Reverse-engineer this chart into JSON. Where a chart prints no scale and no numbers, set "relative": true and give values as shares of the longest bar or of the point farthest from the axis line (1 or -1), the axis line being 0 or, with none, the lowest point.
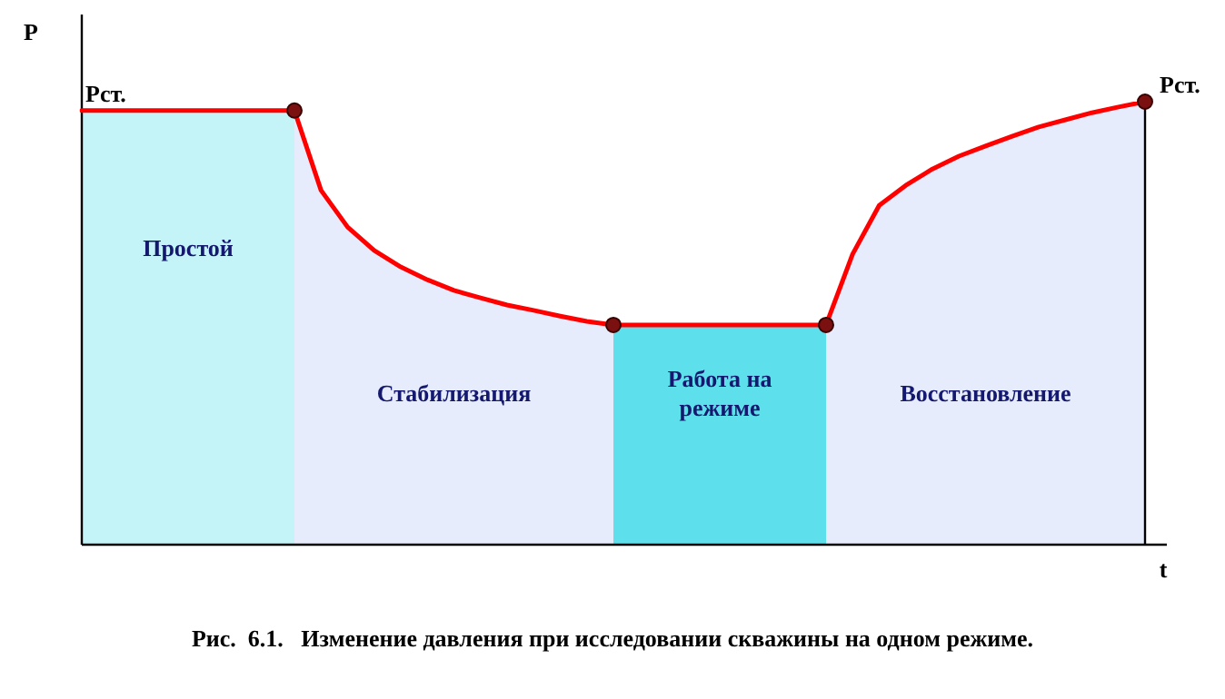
{
  "chart_data": {
    "type": "line",
    "relative": true,
    "xlabel": "t",
    "ylabel": "P",
    "tick_labels": false,
    "legend": false,
    "marker": "none",
    "categories": [
      null,
      null,
      null,
      null,
      null,
      null,
      null,
      null,
      null,
      null,
      null,
      null,
      null,
      null,
      null,
      null,
      null,
      null,
      null,
      null,
      null,
      null,
      null,
      null,
      null,
      null,
      null,
      null,
      null,
      null,
      null,
      null,
      null,
      null,
      null,
      null,
      null,
      null,
      null,
      null,
      null
    ],
    "series": [
      {
        "color": "#ff0000",
        "values": [
          0.98,
          0.98,
          0.98,
          0.98,
          0.98,
          0.98,
          0.98,
          0.98,
          0.98,
          0.8,
          0.717,
          0.664,
          0.627,
          0.598,
          0.574,
          0.557,
          0.541,
          0.529,
          0.516,
          0.504,
          0.496,
          0.496,
          0.496,
          0.496,
          0.496,
          0.496,
          0.496,
          0.496,
          0.496,
          0.656,
          0.766,
          0.811,
          0.848,
          0.877,
          0.9,
          0.922,
          0.943,
          0.959,
          0.975,
          0.988,
          1
        ]
      }
    ],
    "annotations": [
      "Рст.",
      "Рст.",
      "Простой",
      "Стабилизация",
      "Работа на режиме",
      "Восстановление",
      "Рис.  6.1.   Изменение давления при исследовании скважины на одном режиме."
    ]
  }
}
